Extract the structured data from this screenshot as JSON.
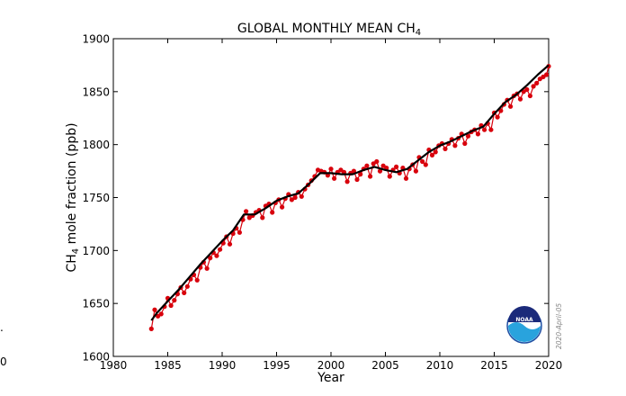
{
  "chart_data": {
    "type": "line",
    "title_main": "GLOBAL MONTHLY MEAN CH",
    "title_sub": "4",
    "xlabel": "Year",
    "ylabel_main": "CH",
    "ylabel_sub": "4",
    "ylabel_rest": " mole fraction (ppb)",
    "xlim": [
      1980,
      2020
    ],
    "ylim": [
      1600,
      1900
    ],
    "xticks": [
      "1980",
      "1985",
      "1990",
      "1995",
      "2000",
      "2005",
      "2010",
      "2015",
      "2020"
    ],
    "yticks": [
      "1600",
      "1650",
      "1700",
      "1750",
      "1800",
      "1850",
      "1900"
    ],
    "grid": false,
    "series": [
      {
        "role": "trend",
        "color": "#000000",
        "x": [
          1983.5,
          1984,
          1985,
          1986,
          1987,
          1988,
          1989,
          1990,
          1991,
          1992,
          1993,
          1994,
          1995,
          1996,
          1997,
          1998,
          1999,
          2000,
          2001,
          2002,
          2003,
          2004,
          2005,
          2006,
          2007,
          2008,
          2009,
          2010,
          2011,
          2012,
          2013,
          2014,
          2015,
          2016,
          2017,
          2018,
          2019,
          2020
        ],
        "y": [
          1634,
          1641,
          1652,
          1663,
          1675,
          1687,
          1698,
          1709,
          1719,
          1734,
          1734,
          1740,
          1747,
          1751,
          1754,
          1763,
          1773,
          1773,
          1772,
          1772,
          1776,
          1779,
          1776,
          1774,
          1777,
          1785,
          1793,
          1799,
          1803,
          1808,
          1813,
          1817,
          1829,
          1840,
          1847,
          1856,
          1866,
          1875
        ]
      },
      {
        "role": "monthly-mean",
        "color": "#d8000c",
        "x": [
          1983.5,
          1983.8,
          1984.1,
          1984.4,
          1984.7,
          1985,
          1985.3,
          1985.6,
          1985.9,
          1986.2,
          1986.5,
          1986.8,
          1987.1,
          1987.4,
          1987.7,
          1988,
          1988.3,
          1988.6,
          1988.9,
          1989.2,
          1989.5,
          1989.8,
          1990.1,
          1990.4,
          1990.7,
          1991,
          1991.3,
          1991.6,
          1991.9,
          1992.2,
          1992.5,
          1992.8,
          1993.1,
          1993.4,
          1993.7,
          1994,
          1994.3,
          1994.6,
          1994.9,
          1995.2,
          1995.5,
          1995.8,
          1996.1,
          1996.4,
          1996.7,
          1997,
          1997.3,
          1997.6,
          1997.9,
          1998.2,
          1998.5,
          1998.8,
          1999.1,
          1999.4,
          1999.7,
          2000,
          2000.3,
          2000.6,
          2000.9,
          2001.2,
          2001.5,
          2001.8,
          2002.1,
          2002.4,
          2002.7,
          2003,
          2003.3,
          2003.6,
          2003.9,
          2004.2,
          2004.5,
          2004.8,
          2005.1,
          2005.4,
          2005.7,
          2006,
          2006.3,
          2006.6,
          2006.9,
          2007.2,
          2007.5,
          2007.8,
          2008.1,
          2008.4,
          2008.7,
          2009,
          2009.3,
          2009.6,
          2009.9,
          2010.2,
          2010.5,
          2010.8,
          2011.1,
          2011.4,
          2011.7,
          2012,
          2012.3,
          2012.6,
          2012.9,
          2013.2,
          2013.5,
          2013.8,
          2014.1,
          2014.4,
          2014.7,
          2015,
          2015.3,
          2015.6,
          2015.9,
          2016.2,
          2016.5,
          2016.8,
          2017.1,
          2017.4,
          2017.7,
          2018,
          2018.3,
          2018.6,
          2018.9,
          2019.2,
          2019.5,
          2019.8,
          2020
        ],
        "y": [
          1626,
          1644,
          1638,
          1640,
          1647,
          1655,
          1648,
          1653,
          1659,
          1665,
          1660,
          1666,
          1673,
          1677,
          1672,
          1684,
          1689,
          1683,
          1693,
          1698,
          1695,
          1701,
          1707,
          1713,
          1706,
          1716,
          1721,
          1717,
          1729,
          1737,
          1731,
          1733,
          1736,
          1738,
          1731,
          1742,
          1744,
          1736,
          1745,
          1748,
          1741,
          1749,
          1753,
          1748,
          1750,
          1755,
          1751,
          1758,
          1762,
          1766,
          1770,
          1776,
          1775,
          1774,
          1771,
          1777,
          1768,
          1774,
          1776,
          1774,
          1765,
          1773,
          1775,
          1767,
          1772,
          1777,
          1780,
          1770,
          1782,
          1784,
          1775,
          1780,
          1778,
          1770,
          1776,
          1779,
          1773,
          1778,
          1768,
          1777,
          1781,
          1775,
          1788,
          1784,
          1781,
          1795,
          1790,
          1793,
          1799,
          1801,
          1796,
          1801,
          1805,
          1799,
          1806,
          1810,
          1801,
          1808,
          1812,
          1814,
          1810,
          1818,
          1814,
          1820,
          1814,
          1830,
          1826,
          1832,
          1838,
          1842,
          1836,
          1846,
          1848,
          1843,
          1850,
          1852,
          1846,
          1855,
          1858,
          1862,
          1864,
          1866,
          1874
        ]
      }
    ],
    "watermark": "2020-April-05",
    "logo_text": "NOAA"
  },
  "edge": {
    "left_char_1": ".",
    "left_char_2": "0"
  }
}
